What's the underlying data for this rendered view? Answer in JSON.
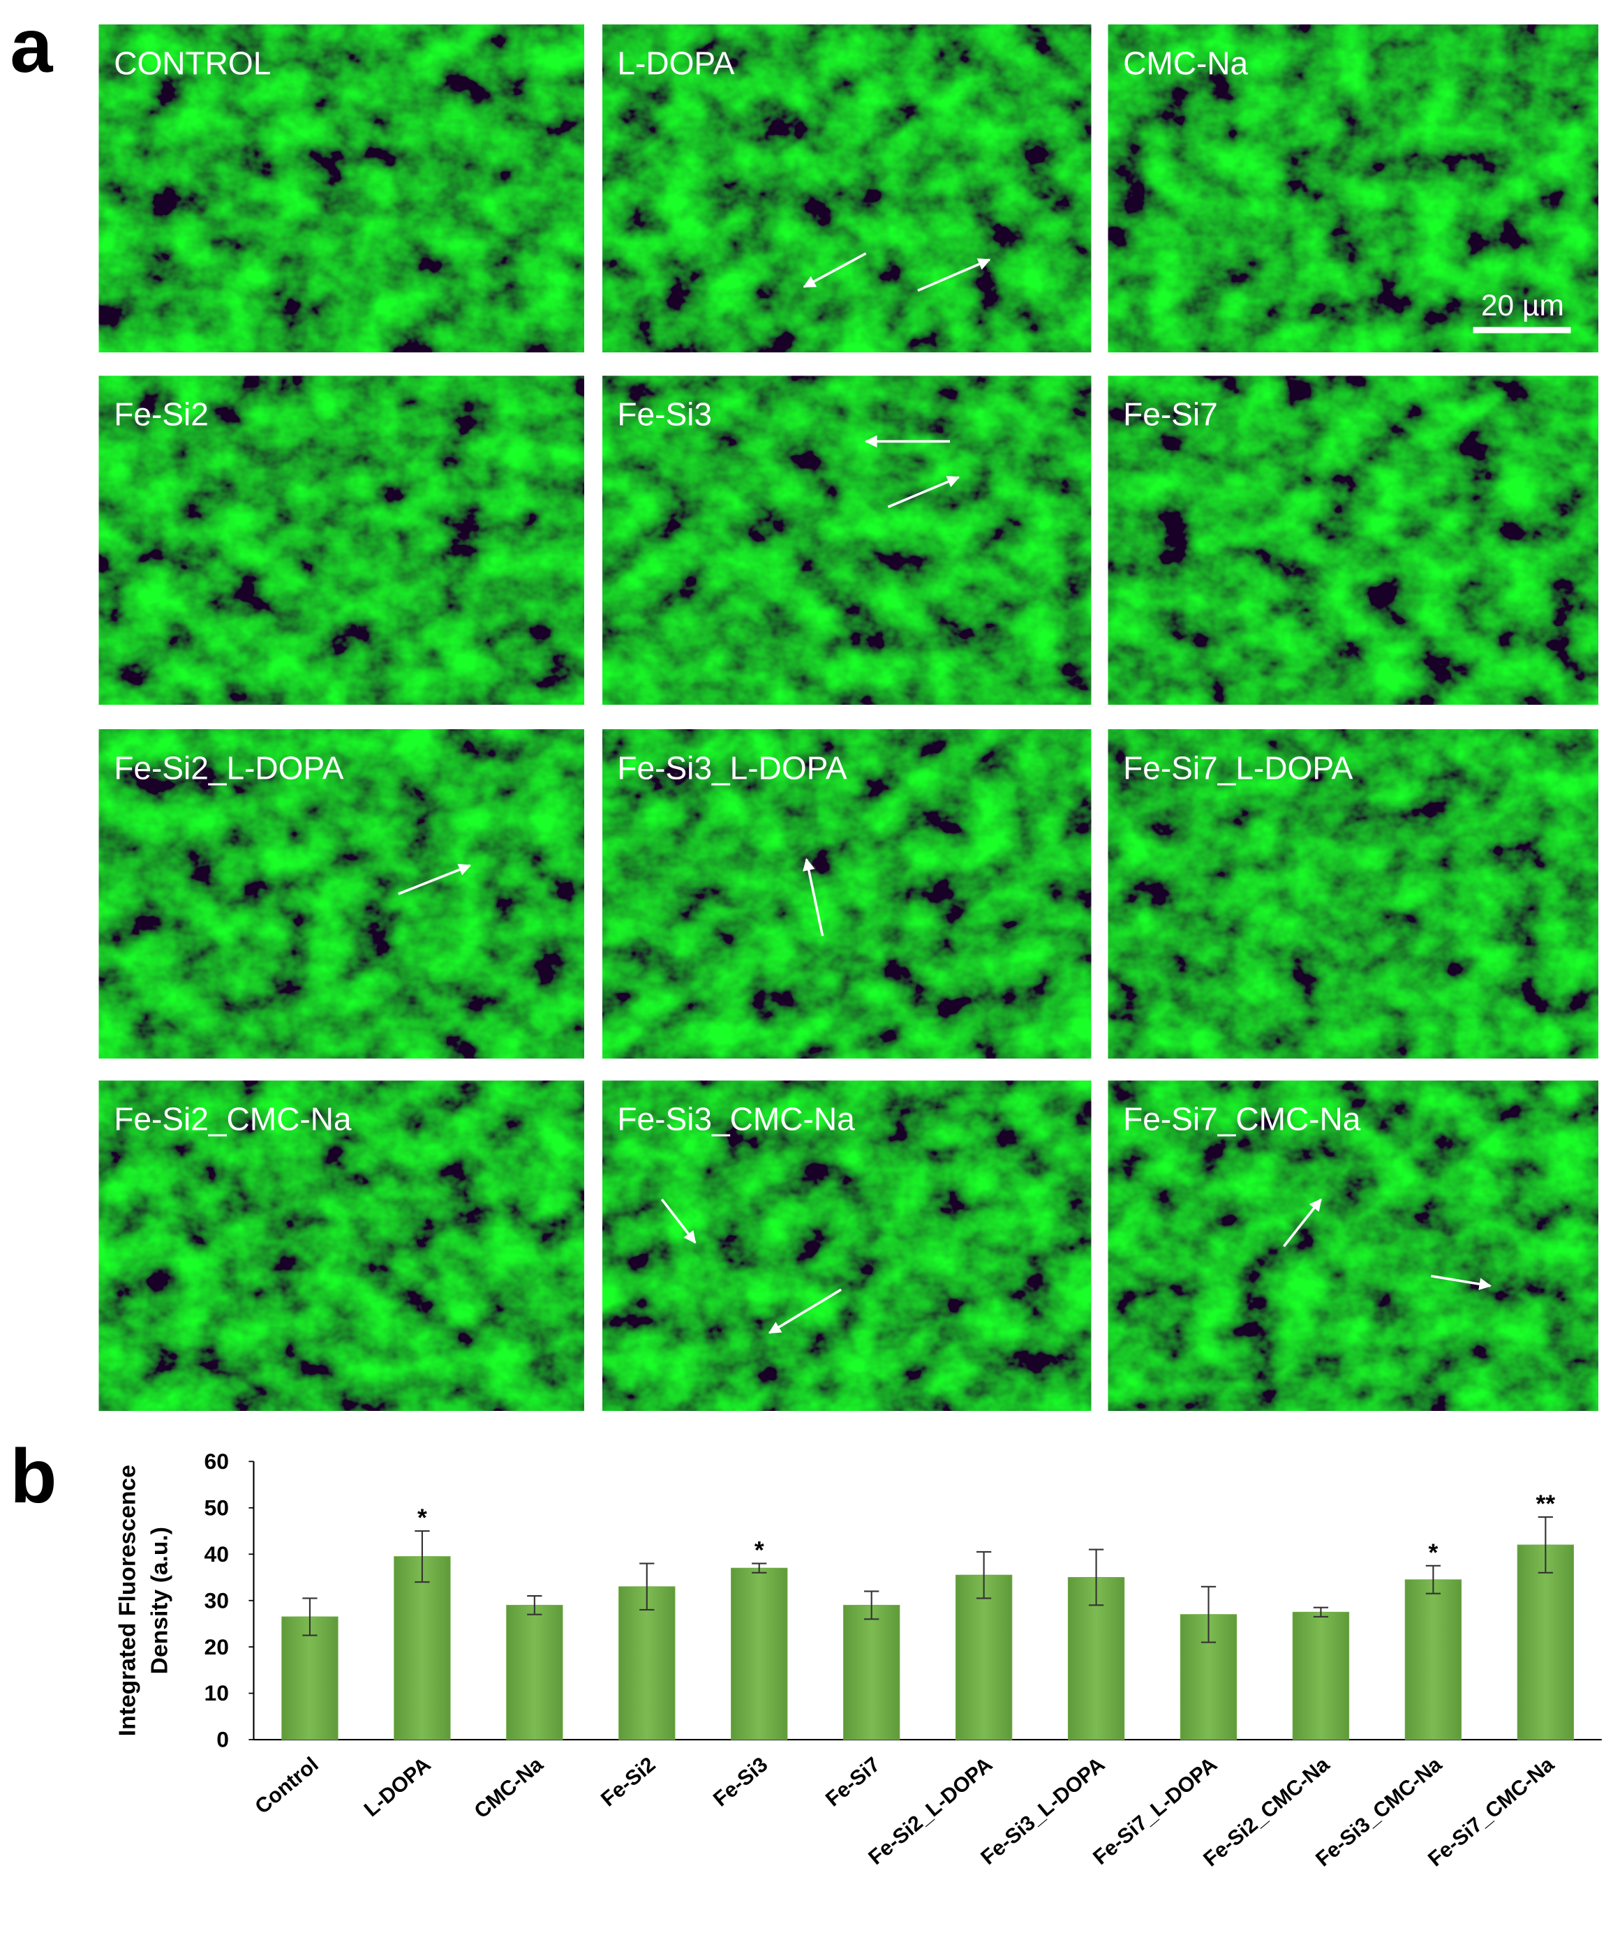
{
  "panel_a_label": "a",
  "images": [
    {
      "label": "CONTROL"
    },
    {
      "label": "L-DOPA"
    },
    {
      "label": "CMC-Na"
    },
    {
      "label": "Fe-Si2"
    },
    {
      "label": "Fe-Si3"
    },
    {
      "label": "Fe-Si7"
    },
    {
      "label": "Fe-Si2_L-DOPA"
    },
    {
      "label": "Fe-Si3_L-DOPA"
    },
    {
      "label": "Fe-Si7_L-DOPA"
    },
    {
      "label": "Fe-Si2_CMC-Na"
    },
    {
      "label": "Fe-Si3_CMC-Na"
    },
    {
      "label": "Fe-Si7_CMC-Na"
    }
  ],
  "scale_bar": "20 µm",
  "panel_b_label": "b",
  "chart_data": {
    "type": "bar",
    "ylabel": [
      "Integrated Fluorescence",
      "Density (a.u.)"
    ],
    "categories": [
      "Control",
      "L-DOPA",
      "CMC-Na",
      "Fe-Si2",
      "Fe-Si3",
      "Fe-Si7",
      "Fe-Si2_L-DOPA",
      "Fe-Si3_L-DOPA",
      "Fe-Si7_L-DOPA",
      "Fe-Si2_CMC-Na",
      "Fe-Si3_CMC-Na",
      "Fe-Si7_CMC-Na"
    ],
    "values": [
      26.5,
      39.5,
      29,
      33,
      37,
      29,
      35.5,
      35,
      27,
      27.5,
      34.5,
      42
    ],
    "errors": [
      4,
      5.5,
      2,
      5,
      1,
      3,
      5,
      6,
      6,
      1,
      3,
      6
    ],
    "significance": [
      null,
      "*",
      null,
      null,
      "*",
      null,
      null,
      null,
      null,
      null,
      "*",
      "**"
    ],
    "color": "#70ad47",
    "ylim": [
      0,
      60
    ],
    "yticks": [
      0,
      10,
      20,
      30,
      40,
      50,
      60
    ]
  }
}
